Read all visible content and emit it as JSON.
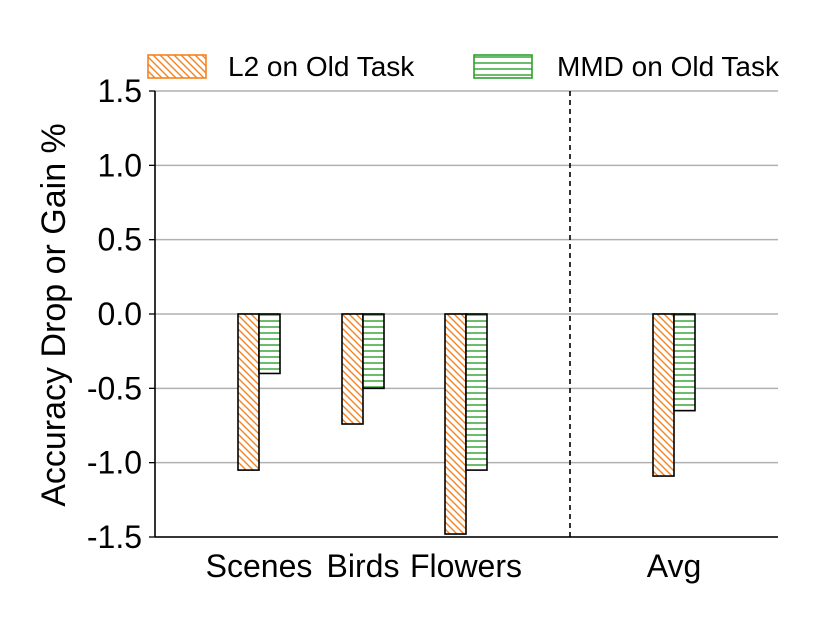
{
  "chart_data": {
    "type": "bar",
    "title": "",
    "xlabel": "",
    "ylabel": "Accuracy Drop or Gain %",
    "categories": [
      "Scenes",
      "Birds",
      "Flowers",
      "Avg"
    ],
    "ylim": [
      -1.5,
      1.5
    ],
    "yticks": [
      -1.5,
      -1.0,
      -0.5,
      0.0,
      0.5,
      1.0,
      1.5
    ],
    "ytick_labels": [
      "-1.5",
      "-1.0",
      "-0.5",
      "0.0",
      "0.5",
      "1.0",
      "1.5"
    ],
    "grid": "horizontal",
    "legend_position": "top",
    "separator_before": "Avg",
    "series": [
      {
        "name": "L2 on Old Task",
        "values": [
          -1.05,
          -0.74,
          -1.48,
          -1.09
        ],
        "color": "#f58220",
        "hatch": "diagonal"
      },
      {
        "name": "MMD on Old Task",
        "values": [
          -0.4,
          -0.5,
          -1.05,
          -0.65
        ],
        "color": "#2ca02c",
        "hatch": "horizontal"
      }
    ]
  }
}
